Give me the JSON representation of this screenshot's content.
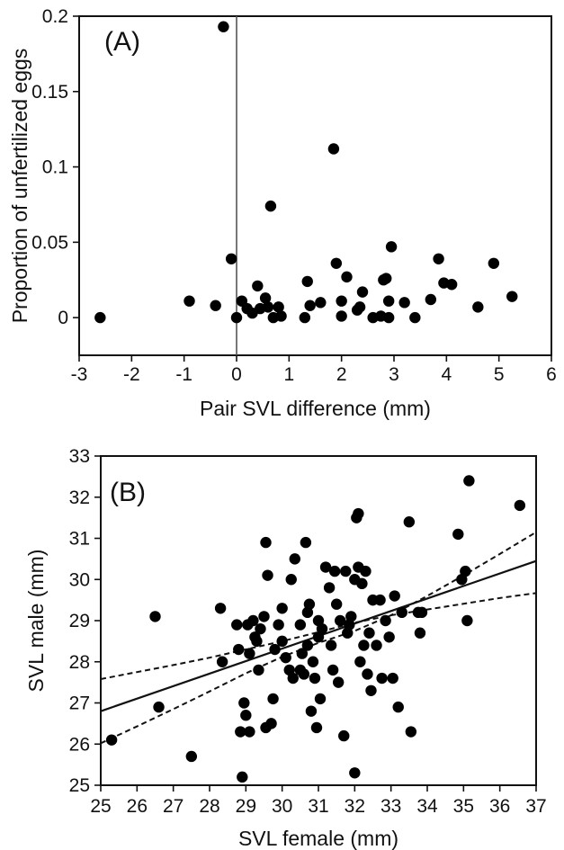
{
  "chart_data": [
    {
      "type": "scatter",
      "panel_label": "(A)",
      "xlabel": "Pair SVL difference (mm)",
      "ylabel": "Proportion of unfertilized eggs",
      "xlim": [
        -3,
        6
      ],
      "ylim": [
        -0.025,
        0.2
      ],
      "xticks": [
        -3,
        -2,
        -1,
        0,
        1,
        2,
        3,
        4,
        5,
        6
      ],
      "xtick_labels": [
        "-3",
        "-2",
        "-1",
        "0",
        "1",
        "2",
        "3",
        "4",
        "5",
        "6"
      ],
      "yticks": [
        0,
        0.05,
        0.1,
        0.15,
        0.2
      ],
      "ytick_labels": [
        "0",
        "0.05",
        "0.1",
        "0.15",
        "0.2"
      ],
      "reference_line_x": 0,
      "grid": false,
      "points": [
        {
          "x": -2.6,
          "y": 0.0
        },
        {
          "x": -0.9,
          "y": 0.011
        },
        {
          "x": -0.4,
          "y": 0.008
        },
        {
          "x": -0.25,
          "y": 0.193
        },
        {
          "x": -0.1,
          "y": 0.039
        },
        {
          "x": 0.0,
          "y": 0.0
        },
        {
          "x": 0.1,
          "y": 0.011
        },
        {
          "x": 0.2,
          "y": 0.006
        },
        {
          "x": 0.3,
          "y": 0.003
        },
        {
          "x": 0.4,
          "y": 0.021
        },
        {
          "x": 0.45,
          "y": 0.006
        },
        {
          "x": 0.55,
          "y": 0.013
        },
        {
          "x": 0.6,
          "y": 0.007
        },
        {
          "x": 0.65,
          "y": 0.074
        },
        {
          "x": 0.7,
          "y": 0.0
        },
        {
          "x": 0.8,
          "y": 0.007
        },
        {
          "x": 0.85,
          "y": 0.001
        },
        {
          "x": 1.3,
          "y": 0.0
        },
        {
          "x": 1.35,
          "y": 0.024
        },
        {
          "x": 1.4,
          "y": 0.008
        },
        {
          "x": 1.6,
          "y": 0.01
        },
        {
          "x": 1.85,
          "y": 0.112
        },
        {
          "x": 1.9,
          "y": 0.036
        },
        {
          "x": 2.0,
          "y": 0.001
        },
        {
          "x": 2.0,
          "y": 0.011
        },
        {
          "x": 2.1,
          "y": 0.027
        },
        {
          "x": 2.3,
          "y": 0.005
        },
        {
          "x": 2.35,
          "y": 0.007
        },
        {
          "x": 2.4,
          "y": 0.017
        },
        {
          "x": 2.6,
          "y": 0.0
        },
        {
          "x": 2.75,
          "y": 0.001
        },
        {
          "x": 2.8,
          "y": 0.025
        },
        {
          "x": 2.85,
          "y": 0.026
        },
        {
          "x": 2.9,
          "y": 0.0
        },
        {
          "x": 2.95,
          "y": 0.047
        },
        {
          "x": 2.9,
          "y": 0.011
        },
        {
          "x": 3.2,
          "y": 0.01
        },
        {
          "x": 3.4,
          "y": 0.0
        },
        {
          "x": 3.7,
          "y": 0.012
        },
        {
          "x": 3.85,
          "y": 0.039
        },
        {
          "x": 3.95,
          "y": 0.023
        },
        {
          "x": 4.1,
          "y": 0.022
        },
        {
          "x": 4.6,
          "y": 0.007
        },
        {
          "x": 4.9,
          "y": 0.036
        },
        {
          "x": 5.25,
          "y": 0.014
        }
      ]
    },
    {
      "type": "scatter",
      "panel_label": "(B)",
      "xlabel": "SVL female (mm)",
      "ylabel": "SVL male (mm)",
      "xlim": [
        25,
        37
      ],
      "ylim": [
        25,
        33
      ],
      "xticks": [
        25,
        26,
        27,
        28,
        29,
        30,
        31,
        32,
        33,
        34,
        35,
        36,
        37
      ],
      "xtick_labels": [
        "25",
        "26",
        "27",
        "28",
        "29",
        "30",
        "31",
        "32",
        "33",
        "34",
        "35",
        "36",
        "37"
      ],
      "yticks": [
        25,
        26,
        27,
        28,
        29,
        30,
        31,
        32,
        33
      ],
      "ytick_labels": [
        "25",
        "26",
        "27",
        "28",
        "29",
        "30",
        "31",
        "32",
        "33"
      ],
      "grid": false,
      "regression_line": {
        "x": [
          25,
          37
        ],
        "y": [
          26.8,
          30.45
        ],
        "style": "solid"
      },
      "confidence_bands": [
        {
          "x": [
            25,
            26,
            27,
            28,
            29,
            30,
            31,
            32,
            33,
            34,
            35,
            36,
            37
          ],
          "y": [
            27.58,
            27.75,
            27.92,
            28.1,
            28.3,
            28.5,
            28.72,
            28.95,
            29.13,
            29.27,
            29.41,
            29.55,
            29.67
          ],
          "style": "dashed"
        },
        {
          "x": [
            25,
            26,
            27,
            28,
            29,
            30,
            31,
            32,
            33,
            34,
            35,
            36,
            37
          ],
          "y": [
            26.02,
            26.43,
            26.85,
            27.28,
            27.72,
            28.12,
            28.46,
            28.75,
            29.13,
            29.6,
            30.1,
            30.62,
            31.15
          ],
          "style": "dashed"
        }
      ],
      "points": [
        {
          "x": 25.3,
          "y": 26.1
        },
        {
          "x": 26.5,
          "y": 29.1
        },
        {
          "x": 26.6,
          "y": 26.9
        },
        {
          "x": 27.5,
          "y": 25.7
        },
        {
          "x": 28.3,
          "y": 29.3
        },
        {
          "x": 28.35,
          "y": 28.0
        },
        {
          "x": 28.75,
          "y": 28.9
        },
        {
          "x": 28.8,
          "y": 28.3
        },
        {
          "x": 28.85,
          "y": 26.3
        },
        {
          "x": 28.9,
          "y": 25.2
        },
        {
          "x": 28.95,
          "y": 27.0
        },
        {
          "x": 29.0,
          "y": 26.7
        },
        {
          "x": 29.05,
          "y": 28.9
        },
        {
          "x": 29.1,
          "y": 28.2
        },
        {
          "x": 29.1,
          "y": 26.3
        },
        {
          "x": 29.2,
          "y": 29.0
        },
        {
          "x": 29.25,
          "y": 28.6
        },
        {
          "x": 29.3,
          "y": 28.5
        },
        {
          "x": 29.35,
          "y": 27.8
        },
        {
          "x": 29.4,
          "y": 28.8
        },
        {
          "x": 29.5,
          "y": 29.1
        },
        {
          "x": 29.55,
          "y": 30.9
        },
        {
          "x": 29.6,
          "y": 30.1
        },
        {
          "x": 29.55,
          "y": 26.4
        },
        {
          "x": 29.75,
          "y": 27.1
        },
        {
          "x": 29.7,
          "y": 26.5
        },
        {
          "x": 29.8,
          "y": 28.3
        },
        {
          "x": 29.9,
          "y": 28.9
        },
        {
          "x": 30.0,
          "y": 29.3
        },
        {
          "x": 30.0,
          "y": 28.5
        },
        {
          "x": 30.1,
          "y": 28.1
        },
        {
          "x": 30.2,
          "y": 27.8
        },
        {
          "x": 30.25,
          "y": 30.0
        },
        {
          "x": 30.3,
          "y": 27.6
        },
        {
          "x": 30.35,
          "y": 30.5
        },
        {
          "x": 30.5,
          "y": 28.9
        },
        {
          "x": 30.5,
          "y": 27.8
        },
        {
          "x": 30.55,
          "y": 28.2
        },
        {
          "x": 30.6,
          "y": 27.7
        },
        {
          "x": 30.65,
          "y": 30.9
        },
        {
          "x": 30.7,
          "y": 29.2
        },
        {
          "x": 30.7,
          "y": 28.4
        },
        {
          "x": 30.75,
          "y": 29.4
        },
        {
          "x": 30.8,
          "y": 26.8
        },
        {
          "x": 30.85,
          "y": 28.0
        },
        {
          "x": 30.9,
          "y": 27.6
        },
        {
          "x": 30.95,
          "y": 26.4
        },
        {
          "x": 31.0,
          "y": 28.6
        },
        {
          "x": 31.0,
          "y": 29.0
        },
        {
          "x": 31.05,
          "y": 27.1
        },
        {
          "x": 31.1,
          "y": 28.8
        },
        {
          "x": 31.2,
          "y": 30.3
        },
        {
          "x": 31.3,
          "y": 29.8
        },
        {
          "x": 31.35,
          "y": 28.4
        },
        {
          "x": 31.4,
          "y": 27.8
        },
        {
          "x": 31.45,
          "y": 30.2
        },
        {
          "x": 31.5,
          "y": 29.4
        },
        {
          "x": 31.55,
          "y": 27.5
        },
        {
          "x": 31.6,
          "y": 29.0
        },
        {
          "x": 31.7,
          "y": 26.2
        },
        {
          "x": 31.75,
          "y": 30.2
        },
        {
          "x": 31.8,
          "y": 28.7
        },
        {
          "x": 31.85,
          "y": 28.9
        },
        {
          "x": 31.9,
          "y": 29.1
        },
        {
          "x": 32.0,
          "y": 25.3
        },
        {
          "x": 32.0,
          "y": 30.0
        },
        {
          "x": 32.05,
          "y": 31.5
        },
        {
          "x": 32.1,
          "y": 31.6
        },
        {
          "x": 32.1,
          "y": 30.3
        },
        {
          "x": 32.15,
          "y": 28.0
        },
        {
          "x": 32.2,
          "y": 29.9
        },
        {
          "x": 32.25,
          "y": 28.4
        },
        {
          "x": 32.3,
          "y": 30.2
        },
        {
          "x": 32.35,
          "y": 27.7
        },
        {
          "x": 32.4,
          "y": 28.7
        },
        {
          "x": 32.45,
          "y": 27.3
        },
        {
          "x": 32.5,
          "y": 29.5
        },
        {
          "x": 32.6,
          "y": 28.4
        },
        {
          "x": 32.7,
          "y": 29.5
        },
        {
          "x": 32.75,
          "y": 27.6
        },
        {
          "x": 32.85,
          "y": 29.0
        },
        {
          "x": 32.95,
          "y": 28.6
        },
        {
          "x": 33.05,
          "y": 27.6
        },
        {
          "x": 33.1,
          "y": 29.6
        },
        {
          "x": 33.2,
          "y": 26.9
        },
        {
          "x": 33.3,
          "y": 29.2
        },
        {
          "x": 33.5,
          "y": 31.4
        },
        {
          "x": 33.55,
          "y": 26.3
        },
        {
          "x": 33.75,
          "y": 29.2
        },
        {
          "x": 33.8,
          "y": 28.7
        },
        {
          "x": 33.85,
          "y": 29.2
        },
        {
          "x": 34.85,
          "y": 31.1
        },
        {
          "x": 34.95,
          "y": 30.0
        },
        {
          "x": 35.05,
          "y": 30.2
        },
        {
          "x": 35.1,
          "y": 29.0
        },
        {
          "x": 35.15,
          "y": 32.4
        },
        {
          "x": 36.55,
          "y": 31.8
        }
      ]
    }
  ]
}
